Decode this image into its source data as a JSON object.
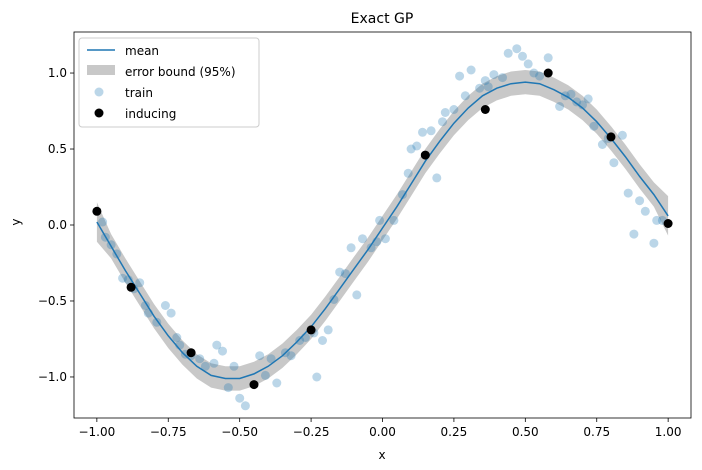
{
  "chart_data": {
    "type": "scatter",
    "title": "Exact GP",
    "xlabel": "x",
    "ylabel": "y",
    "xlim": [
      -1.08,
      1.08
    ],
    "ylim": [
      -1.27,
      1.27
    ],
    "xticks": [
      -1.0,
      -0.75,
      -0.5,
      -0.25,
      0.0,
      0.25,
      0.5,
      0.75,
      1.0
    ],
    "xtick_labels": [
      "−1.00",
      "−0.75",
      "−0.50",
      "−0.25",
      "0.00",
      "0.25",
      "0.50",
      "0.75",
      "1.00"
    ],
    "yticks": [
      -1.0,
      -0.5,
      0.0,
      0.5,
      1.0
    ],
    "ytick_labels": [
      "−1.0",
      "−0.5",
      "0.0",
      "0.5",
      "1.0"
    ],
    "grid": false,
    "legend_position": "top-left",
    "legend": [
      {
        "label": "mean",
        "kind": "line",
        "color": "#1f77b4"
      },
      {
        "label": "error bound (95%)",
        "kind": "band",
        "color": "#c8c8c8"
      },
      {
        "label": "train",
        "kind": "point",
        "color": "#1f77b4",
        "alpha": 0.3
      },
      {
        "label": "inducing",
        "kind": "point",
        "color": "#000000"
      }
    ],
    "mean_curve": {
      "name": "mean",
      "color": "#1f77b4",
      "x": [
        -1.0,
        -0.95,
        -0.9,
        -0.85,
        -0.8,
        -0.75,
        -0.7,
        -0.65,
        -0.6,
        -0.55,
        -0.5,
        -0.45,
        -0.4,
        -0.35,
        -0.3,
        -0.25,
        -0.2,
        -0.15,
        -0.1,
        -0.05,
        0.0,
        0.05,
        0.1,
        0.15,
        0.2,
        0.25,
        0.3,
        0.35,
        0.4,
        0.45,
        0.5,
        0.55,
        0.6,
        0.65,
        0.7,
        0.75,
        0.8,
        0.85,
        0.9,
        0.95,
        1.0
      ],
      "y": [
        0.02,
        -0.14,
        -0.3,
        -0.45,
        -0.6,
        -0.73,
        -0.84,
        -0.93,
        -0.99,
        -1.01,
        -1.01,
        -0.98,
        -0.93,
        -0.86,
        -0.77,
        -0.67,
        -0.55,
        -0.42,
        -0.29,
        -0.16,
        -0.02,
        0.12,
        0.27,
        0.42,
        0.55,
        0.67,
        0.77,
        0.85,
        0.9,
        0.93,
        0.94,
        0.93,
        0.89,
        0.84,
        0.77,
        0.68,
        0.57,
        0.45,
        0.32,
        0.2,
        0.06
      ]
    },
    "error_band": {
      "name": "error bound (95%)",
      "color": "#c8c8c8",
      "half_width": 0.08,
      "edge_half_width": 0.13
    },
    "train": {
      "name": "train",
      "color": "#1f77b4",
      "alpha": 0.3,
      "x": [
        -0.98,
        -0.97,
        -0.95,
        -0.93,
        -0.91,
        -0.89,
        -0.87,
        -0.85,
        -0.83,
        -0.82,
        -0.79,
        -0.76,
        -0.74,
        -0.72,
        -0.71,
        -0.69,
        -0.67,
        -0.64,
        -0.62,
        -0.59,
        -0.58,
        -0.56,
        -0.54,
        -0.52,
        -0.5,
        -0.48,
        -0.43,
        -0.41,
        -0.39,
        -0.37,
        -0.34,
        -0.32,
        -0.29,
        -0.27,
        -0.24,
        -0.23,
        -0.21,
        -0.19,
        -0.17,
        -0.15,
        -0.13,
        -0.11,
        -0.09,
        -0.07,
        -0.04,
        -0.02,
        -0.01,
        0.01,
        0.04,
        0.07,
        0.09,
        0.1,
        0.12,
        0.14,
        0.17,
        0.19,
        0.21,
        0.22,
        0.25,
        0.27,
        0.29,
        0.31,
        0.34,
        0.36,
        0.37,
        0.39,
        0.42,
        0.44,
        0.47,
        0.49,
        0.51,
        0.53,
        0.55,
        0.58,
        0.62,
        0.64,
        0.66,
        0.68,
        0.7,
        0.72,
        0.74,
        0.77,
        0.79,
        0.81,
        0.84,
        0.86,
        0.88,
        0.9,
        0.92,
        0.95,
        0.96,
        0.98
      ],
      "y": [
        0.02,
        -0.08,
        -0.13,
        -0.19,
        -0.35,
        -0.36,
        -0.42,
        -0.38,
        -0.53,
        -0.58,
        -0.64,
        -0.53,
        -0.58,
        -0.74,
        -0.79,
        -0.85,
        -0.86,
        -0.88,
        -0.93,
        -0.91,
        -0.79,
        -0.83,
        -1.07,
        -0.93,
        -1.14,
        -1.19,
        -0.86,
        -0.99,
        -0.88,
        -1.04,
        -0.84,
        -0.86,
        -0.76,
        -0.74,
        -0.71,
        -1.0,
        -0.76,
        -0.69,
        -0.49,
        -0.31,
        -0.32,
        -0.15,
        -0.46,
        -0.09,
        -0.15,
        -0.11,
        0.03,
        -0.09,
        0.03,
        0.2,
        0.34,
        0.5,
        0.52,
        0.61,
        0.62,
        0.31,
        0.68,
        0.74,
        0.76,
        0.98,
        0.85,
        1.02,
        0.9,
        0.95,
        0.91,
        0.99,
        0.97,
        1.13,
        1.16,
        1.11,
        1.06,
        1.0,
        0.98,
        1.1,
        0.78,
        0.85,
        0.86,
        0.81,
        0.79,
        0.83,
        0.65,
        0.53,
        0.57,
        0.41,
        0.59,
        0.21,
        -0.06,
        0.16,
        0.09,
        -0.12,
        0.03,
        0.03
      ]
    },
    "inducing": {
      "name": "inducing",
      "color": "#000000",
      "x": [
        -1.0,
        -0.88,
        -0.67,
        -0.45,
        -0.25,
        0.15,
        0.36,
        0.58,
        0.8,
        1.0
      ],
      "y": [
        0.09,
        -0.41,
        -0.84,
        -1.05,
        -0.69,
        0.46,
        0.76,
        1.0,
        0.58,
        0.01
      ]
    }
  }
}
